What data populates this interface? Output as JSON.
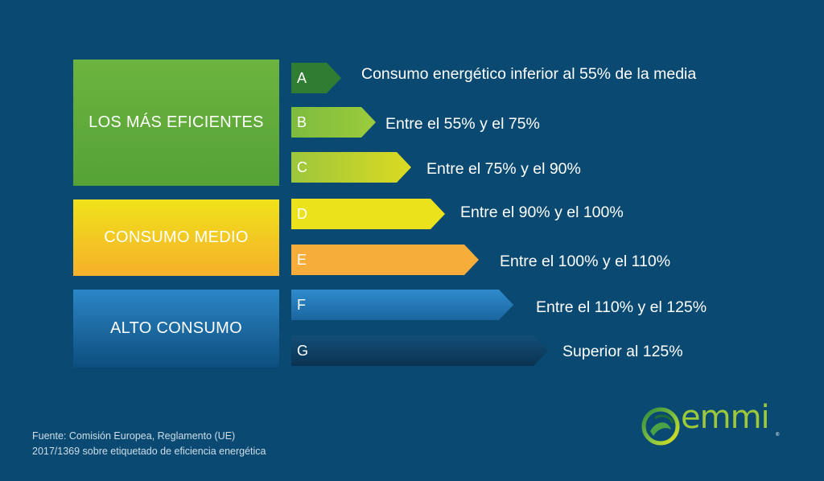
{
  "groups": [
    {
      "label": "LOS MÁS EFICIENTES"
    },
    {
      "label": "CONSUMO MEDIO"
    },
    {
      "label": "ALTO CONSUMO"
    }
  ],
  "classes": [
    {
      "letter": "A",
      "description": "Consumo energético inferior al 55% de la media",
      "color": "#2e7d32"
    },
    {
      "letter": "B",
      "description": "Entre el 55% y el 75%",
      "color": "#8bc34a"
    },
    {
      "letter": "C",
      "description": "Entre el 75% y el 90%",
      "color": "#c5d52c"
    },
    {
      "letter": "D",
      "description": "Entre el 90% y el 100%",
      "color": "#ebe21c"
    },
    {
      "letter": "E",
      "description": "Entre el 100% y el 110%",
      "color": "#f6ad3a"
    },
    {
      "letter": "F",
      "description": "Entre el 110% y el 125%",
      "color": "#2b7fbf"
    },
    {
      "letter": "G",
      "description": "Superior al 125%",
      "color": "#0e3d62"
    }
  ],
  "source": {
    "line1": "Fuente: Comisión Europea, Reglamento (UE)",
    "line2": "2017/1369 sobre etiquetado de eficiencia energética"
  },
  "logo": {
    "text": "emmi",
    "mark": "®"
  },
  "colors": {
    "background": "#0a4a72",
    "efficient": "#62ad3b",
    "medium": "#f3cc23",
    "high": "#1f6fa8"
  }
}
